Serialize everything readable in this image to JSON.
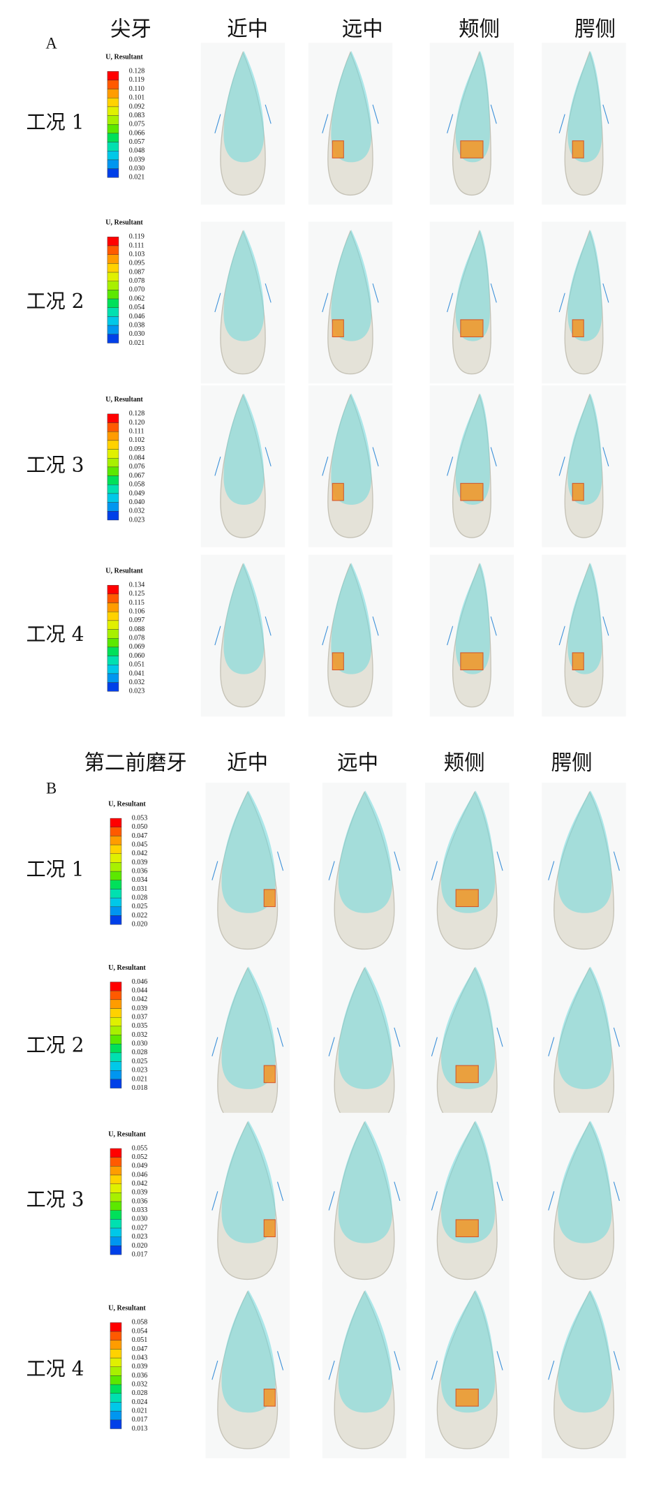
{
  "panels": [
    {
      "label": "A",
      "tooth": "尖牙",
      "views": [
        "近中",
        "远中",
        "颊侧",
        "腭侧"
      ],
      "rows": [
        {
          "condition": "工况 1",
          "legend_title": "U, Resultant",
          "legend_values": [
            "0.128",
            "0.119",
            "0.110",
            "0.101",
            "0.092",
            "0.083",
            "0.075",
            "0.066",
            "0.057",
            "0.048",
            "0.039",
            "0.030",
            "0.021"
          ]
        },
        {
          "condition": "工况 2",
          "legend_title": "U, Resultant",
          "legend_values": [
            "0.119",
            "0.111",
            "0.103",
            "0.095",
            "0.087",
            "0.078",
            "0.070",
            "0.062",
            "0.054",
            "0.046",
            "0.038",
            "0.030",
            "0.021"
          ]
        },
        {
          "condition": "工况 3",
          "legend_title": "U, Resultant",
          "legend_values": [
            "0.128",
            "0.120",
            "0.111",
            "0.102",
            "0.093",
            "0.084",
            "0.076",
            "0.067",
            "0.058",
            "0.049",
            "0.040",
            "0.032",
            "0.023"
          ]
        },
        {
          "condition": "工况 4",
          "legend_title": "U, Resultant",
          "legend_values": [
            "0.134",
            "0.125",
            "0.115",
            "0.106",
            "0.097",
            "0.088",
            "0.078",
            "0.069",
            "0.060",
            "0.051",
            "0.041",
            "0.032",
            "0.023"
          ]
        }
      ]
    },
    {
      "label": "B",
      "tooth": "第二前磨牙",
      "views": [
        "近中",
        "远中",
        "颊侧",
        "腭侧"
      ],
      "rows": [
        {
          "condition": "工况 1",
          "legend_title": "U, Resultant",
          "legend_values": [
            "0.053",
            "0.050",
            "0.047",
            "0.045",
            "0.042",
            "0.039",
            "0.036",
            "0.034",
            "0.031",
            "0.028",
            "0.025",
            "0.022",
            "0.020"
          ]
        },
        {
          "condition": "工况 2",
          "legend_title": "U, Resultant",
          "legend_values": [
            "0.046",
            "0.044",
            "0.042",
            "0.039",
            "0.037",
            "0.035",
            "0.032",
            "0.030",
            "0.028",
            "0.025",
            "0.023",
            "0.021",
            "0.018"
          ]
        },
        {
          "condition": "工况 3",
          "legend_title": "U, Resultant",
          "legend_values": [
            "0.055",
            "0.052",
            "0.049",
            "0.046",
            "0.042",
            "0.039",
            "0.036",
            "0.033",
            "0.030",
            "0.027",
            "0.023",
            "0.020",
            "0.017"
          ]
        },
        {
          "condition": "工况 4",
          "legend_title": "U, Resultant",
          "legend_values": [
            "0.058",
            "0.054",
            "0.051",
            "0.047",
            "0.043",
            "0.039",
            "0.036",
            "0.032",
            "0.028",
            "0.024",
            "0.021",
            "0.017",
            "0.013"
          ]
        }
      ]
    }
  ]
}
